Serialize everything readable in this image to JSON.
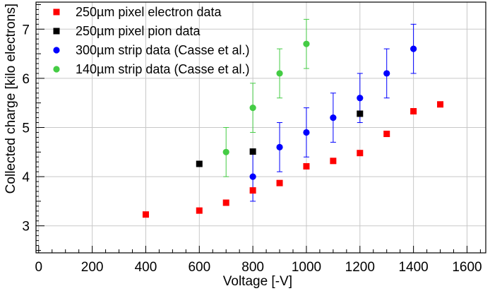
{
  "chart_data": {
    "type": "scatter",
    "title": "",
    "xlabel": "Voltage [-V]",
    "ylabel": "Collected charge [kilo electrons]",
    "xlim": [
      -10,
      1670
    ],
    "ylim": [
      2.45,
      7.55
    ],
    "x_ticks": [
      0,
      200,
      400,
      600,
      800,
      1000,
      1200,
      1400,
      1600
    ],
    "y_ticks": [
      3,
      4,
      5,
      6,
      7
    ],
    "grid": true,
    "legend_position": "top-left",
    "series": [
      {
        "name": "250µm pixel electron data",
        "color": "#ff0000",
        "marker": "square",
        "points": [
          {
            "x": 400,
            "y": 3.23
          },
          {
            "x": 600,
            "y": 3.31
          },
          {
            "x": 700,
            "y": 3.47
          },
          {
            "x": 800,
            "y": 3.72
          },
          {
            "x": 900,
            "y": 3.87
          },
          {
            "x": 1000,
            "y": 4.21
          },
          {
            "x": 1100,
            "y": 4.32
          },
          {
            "x": 1200,
            "y": 4.48
          },
          {
            "x": 1300,
            "y": 4.87
          },
          {
            "x": 1400,
            "y": 5.33
          },
          {
            "x": 1500,
            "y": 5.47
          }
        ]
      },
      {
        "name": "250µm pixel pion data",
        "color": "#000000",
        "marker": "square",
        "points": [
          {
            "x": 600,
            "y": 4.26
          },
          {
            "x": 800,
            "y": 4.51
          },
          {
            "x": 1200,
            "y": 5.28
          }
        ]
      },
      {
        "name": "300µm strip data (Casse et al.)",
        "color": "#0000ff",
        "marker": "circle",
        "points": [
          {
            "x": 800,
            "y": 4.0,
            "err": 0.5
          },
          {
            "x": 900,
            "y": 4.6,
            "err": 0.5
          },
          {
            "x": 1000,
            "y": 4.9,
            "err": 0.5
          },
          {
            "x": 1100,
            "y": 5.2,
            "err": 0.5
          },
          {
            "x": 1200,
            "y": 5.6,
            "err": 0.5
          },
          {
            "x": 1300,
            "y": 6.1,
            "err": 0.5
          },
          {
            "x": 1400,
            "y": 6.6,
            "err": 0.5
          }
        ]
      },
      {
        "name": "140µm strip data (Casse et al.)",
        "color": "#44cc44",
        "marker": "circle",
        "points": [
          {
            "x": 700,
            "y": 4.5,
            "err": 0.5
          },
          {
            "x": 800,
            "y": 5.4,
            "err": 0.5
          },
          {
            "x": 900,
            "y": 6.1,
            "err": 0.5
          },
          {
            "x": 1000,
            "y": 6.7,
            "err": 0.5
          }
        ]
      }
    ]
  }
}
